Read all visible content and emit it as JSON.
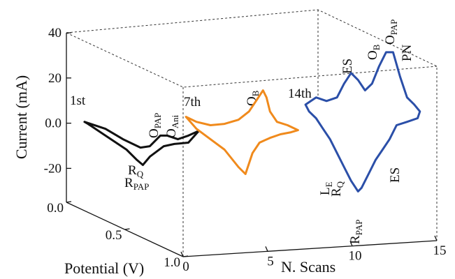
{
  "chart_data": {
    "type": "line",
    "ylabel": "Current (mA)",
    "xlabel": "Potential (V)",
    "zlabel": "N. Scans",
    "ylim": [
      -35,
      40
    ],
    "yticks": [
      -20,
      {
        "value": 0,
        "label": "0.0"
      },
      20,
      40
    ],
    "xlim": [
      0,
      1
    ],
    "xticks": [
      {
        "value": 0,
        "label": "0.0"
      },
      0.5,
      {
        "value": 1,
        "label": "1.0"
      }
    ],
    "zlim": [
      0,
      15
    ],
    "zticks": [
      0,
      5,
      10,
      15
    ],
    "series": [
      {
        "name": "1st",
        "scan": 1,
        "color": "#111111",
        "x": [
          0.01,
          0.19,
          0.34,
          0.49,
          0.57,
          0.66,
          0.72,
          0.81,
          0.9,
          0.99,
          0.9,
          0.78,
          0.69,
          0.57,
          0.51,
          0.46,
          0.37,
          0.19,
          0.04
        ],
        "values": [
          0.6,
          -2.5,
          -7.1,
          -10.8,
          -10.2,
          -5.5,
          -5.5,
          -7.1,
          -5.5,
          -3.4,
          -8.6,
          -9.2,
          -10.2,
          -14.8,
          -18.5,
          -16.3,
          -11.7,
          -5.5,
          -0.3
        ]
      },
      {
        "name": "7th",
        "scan": 7,
        "color": "#f08a1c",
        "x": [
          0.01,
          0.1,
          0.22,
          0.34,
          0.46,
          0.55,
          0.61,
          0.67,
          0.7,
          0.73,
          0.79,
          0.88,
          0.97,
          0.91,
          0.82,
          0.73,
          0.64,
          0.58,
          0.52,
          0.46,
          0.34,
          0.22,
          0.1
        ],
        "values": [
          2.8,
          0.6,
          -0.9,
          -0.3,
          1.5,
          5.2,
          9.8,
          14.5,
          11.4,
          5.2,
          0.6,
          -0.9,
          -3.1,
          -4.0,
          -4.9,
          -6.5,
          -8.6,
          -13.2,
          -22.5,
          -19.4,
          -11.7,
          -7.1,
          -2.5
        ]
      },
      {
        "name": "14th",
        "scan": 14,
        "color": "#2b4fa8",
        "x": [
          0.02,
          0.11,
          0.2,
          0.29,
          0.35,
          0.41,
          0.47,
          0.53,
          0.59,
          0.65,
          0.71,
          0.77,
          0.83,
          0.89,
          0.95,
          1.0,
          0.98,
          0.89,
          0.8,
          0.74,
          0.68,
          0.62,
          0.56,
          0.5,
          0.47,
          0.41,
          0.35,
          0.29,
          0.23,
          0.17,
          0.11,
          0.05
        ],
        "values": [
          8.2,
          11.4,
          9.8,
          11.4,
          17.5,
          22.2,
          19.1,
          14.5,
          17.5,
          25.2,
          31.4,
          31.4,
          20.6,
          11.4,
          8.3,
          5.2,
          2.2,
          0.6,
          -0.9,
          -7.1,
          -11.7,
          -16.3,
          -22.5,
          -28.6,
          -30.2,
          -25.5,
          -19.4,
          -13.2,
          -7.1,
          -2.5,
          2.2,
          5.2
        ]
      }
    ],
    "annotations": [
      {
        "text": "R",
        "sub": "Q"
      },
      {
        "text": "R",
        "sub": "PAP"
      },
      {
        "text": "O",
        "sub": "PAP"
      },
      {
        "text": "O",
        "sub": "Ani"
      },
      {
        "text": "O",
        "sub": "B"
      },
      {
        "text": "ES"
      },
      {
        "text": "O",
        "sub": "B"
      },
      {
        "text": "O",
        "sub": "PAP"
      },
      {
        "text": "PN"
      },
      {
        "text": "L",
        "sub": "E"
      },
      {
        "text": "R",
        "sub": "Q"
      },
      {
        "text": "R",
        "sub": "PAP"
      },
      {
        "text": "ES"
      }
    ]
  }
}
